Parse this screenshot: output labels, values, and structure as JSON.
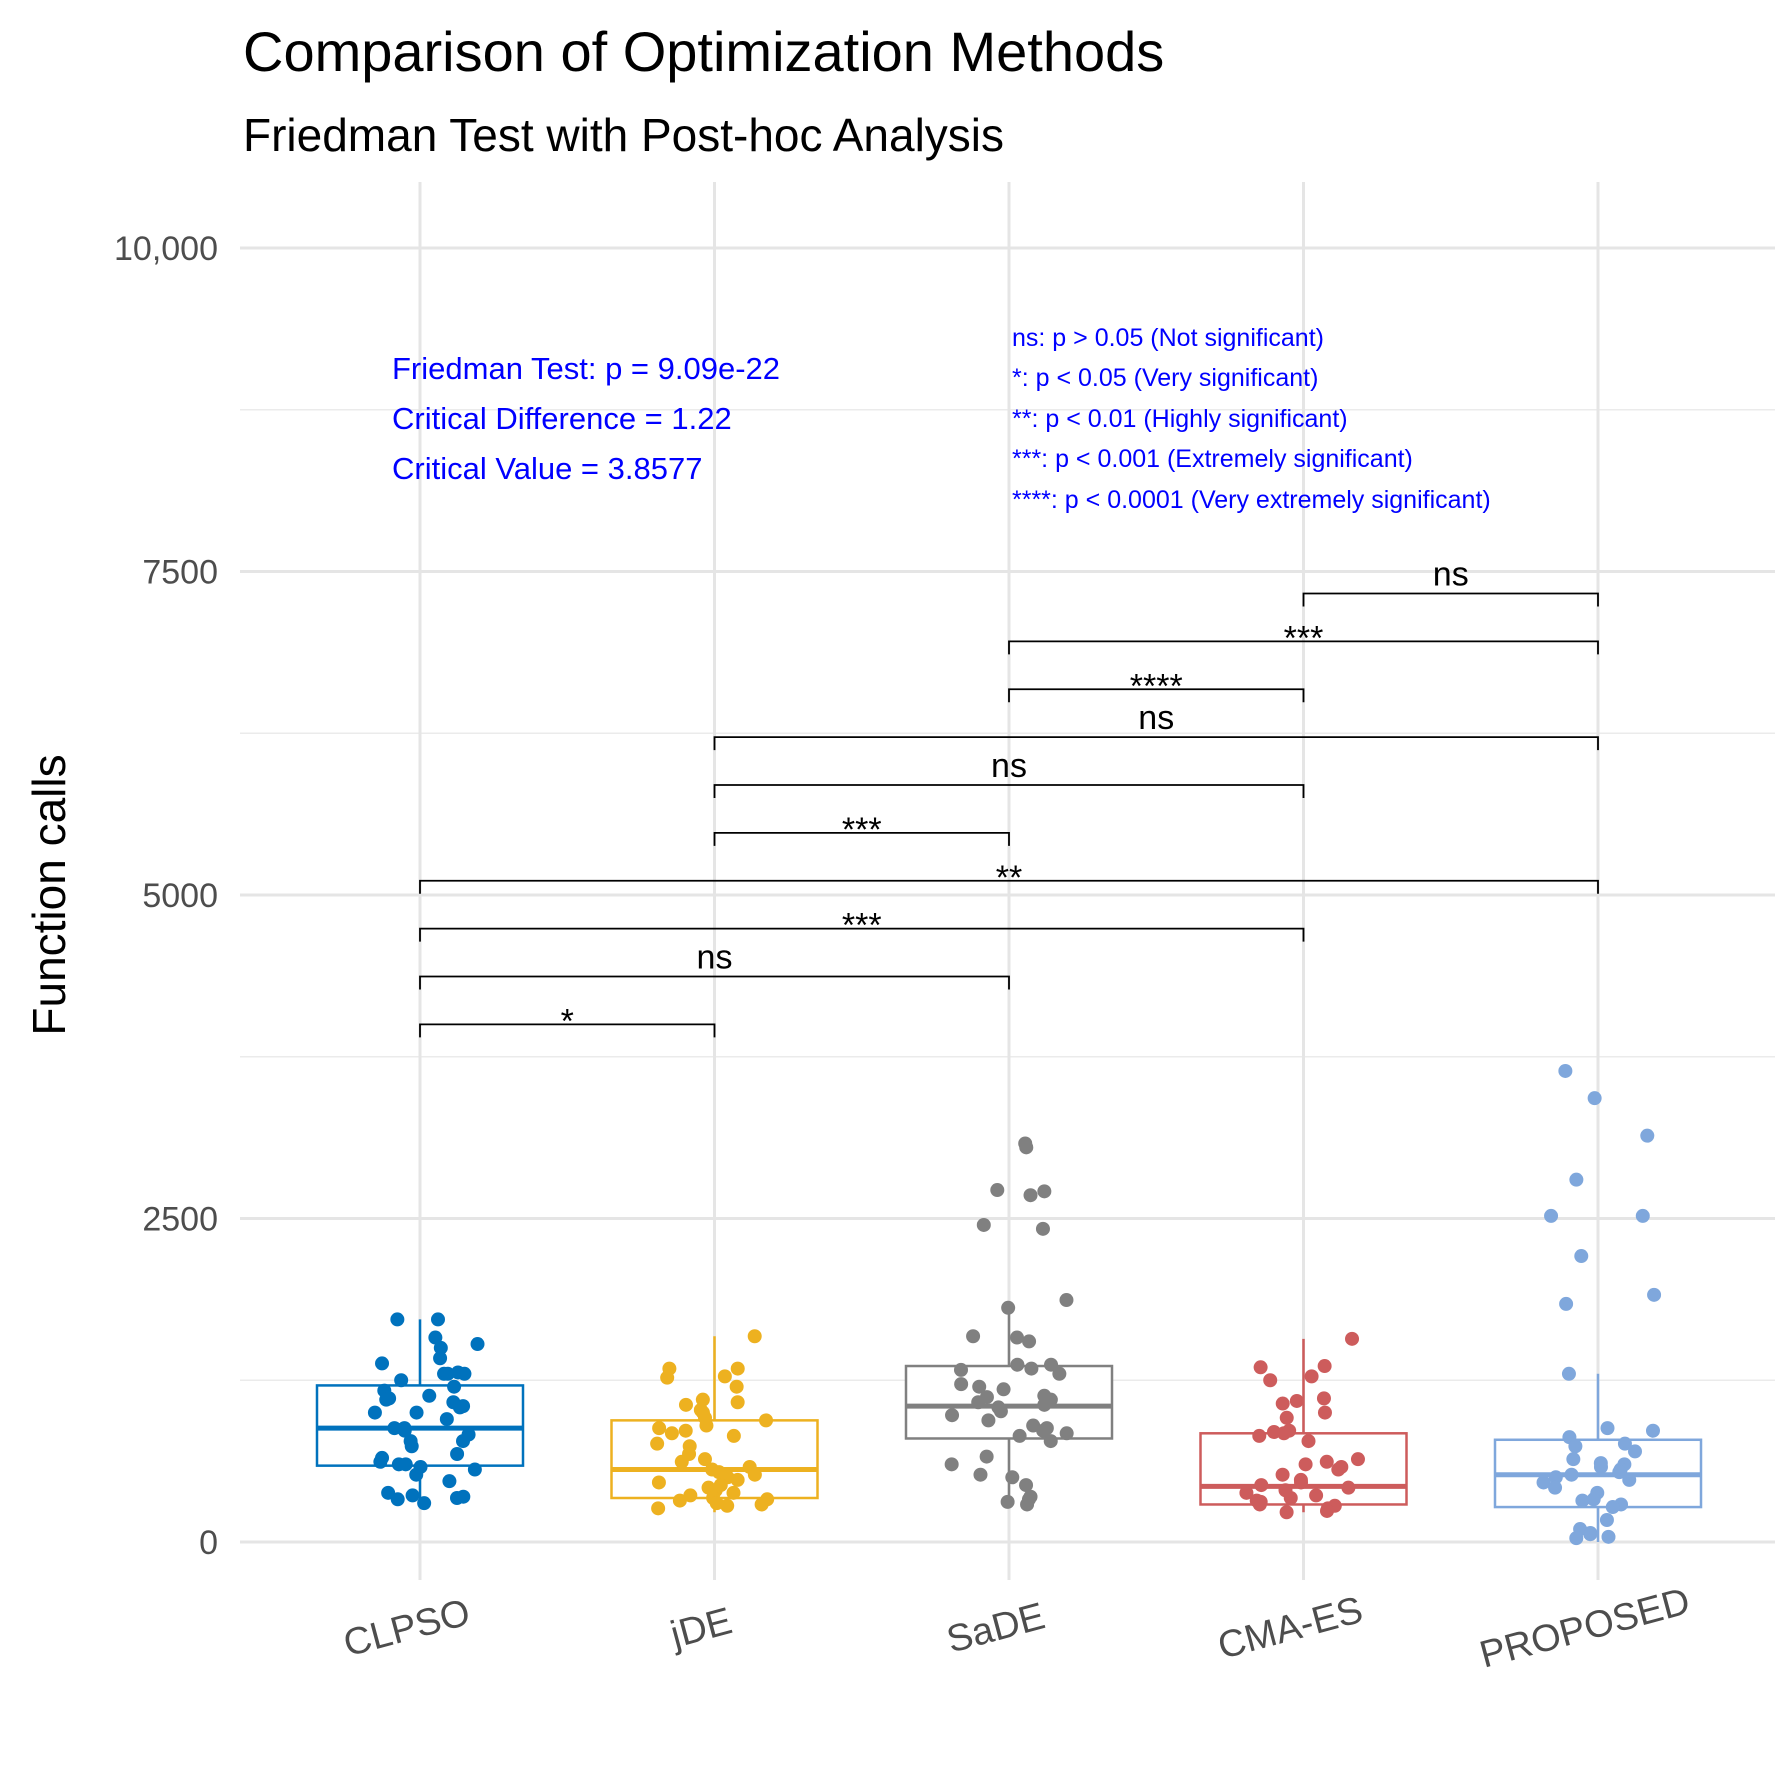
{
  "chart_data": {
    "type": "box",
    "title": "Comparison of Optimization Methods",
    "subtitle": "Friedman Test with Post-hoc Analysis",
    "xlabel": "",
    "ylabel": "Function calls",
    "ylim": [
      -200,
      10500
    ],
    "yticks": [
      0,
      2500,
      5000,
      7500,
      10000
    ],
    "ytick_labels": [
      "0",
      "2500",
      "5000",
      "7500",
      "10,000"
    ],
    "grid": true,
    "categories": [
      "CLPSO",
      "jDE",
      "SaDE",
      "CMA-ES",
      "PROPOSED"
    ],
    "colors": [
      "#0072BD",
      "#EDB120",
      "#808080",
      "#CD5C5C",
      "#7FA7DC"
    ],
    "boxes": [
      {
        "name": "CLPSO",
        "whisker_low": 300,
        "q1": 590,
        "median": 880,
        "q3": 1210,
        "whisker_high": 1720
      },
      {
        "name": "jDE",
        "whisker_low": 230,
        "q1": 340,
        "median": 560,
        "q3": 940,
        "whisker_high": 1590
      },
      {
        "name": "SaDE",
        "whisker_low": 290,
        "q1": 800,
        "median": 1050,
        "q3": 1360,
        "whisker_high": 1860
      },
      {
        "name": "CMA-ES",
        "whisker_low": 230,
        "q1": 290,
        "median": 430,
        "q3": 840,
        "whisker_high": 1570
      },
      {
        "name": "PROPOSED",
        "whisker_low": 0,
        "q1": 270,
        "median": 520,
        "q3": 790,
        "whisker_high": 1300
      }
    ],
    "points": [
      {
        "name": "CLPSO",
        "values": [
          1720,
          1720,
          1580,
          1530,
          1500,
          1420,
          1380,
          1300,
          1300,
          1310,
          1300,
          1250,
          1200,
          1170,
          1130,
          1110,
          1100,
          1080,
          1050,
          1040,
          1000,
          1000,
          950,
          880,
          880,
          860,
          830,
          780,
          780,
          740,
          680,
          650,
          620,
          600,
          600,
          580,
          560,
          520,
          470,
          380,
          360,
          350,
          340,
          330,
          300
        ]
      },
      {
        "name": "jDE",
        "values": [
          1590,
          1340,
          1340,
          1280,
          1270,
          1200,
          1100,
          1080,
          1060,
          1020,
          1000,
          960,
          940,
          900,
          880,
          860,
          840,
          820,
          760,
          740,
          680,
          640,
          620,
          580,
          560,
          540,
          520,
          500,
          480,
          460,
          440,
          420,
          400,
          380,
          360,
          340,
          330,
          320,
          300,
          290,
          280,
          260
        ]
      },
      {
        "name": "SaDE",
        "values": [
          3080,
          3050,
          2720,
          2710,
          2680,
          2450,
          2420,
          1870,
          1810,
          1590,
          1580,
          1550,
          1370,
          1370,
          1340,
          1330,
          1300,
          1220,
          1200,
          1180,
          1130,
          1120,
          1100,
          1080,
          1060,
          1040,
          1010,
          980,
          940,
          900,
          880,
          860,
          840,
          820,
          780,
          660,
          600,
          520,
          500,
          440,
          350,
          330,
          310,
          290
        ]
      },
      {
        "name": "CMA-ES",
        "values": [
          1570,
          1360,
          1350,
          1280,
          1250,
          1110,
          1090,
          1070,
          1000,
          960,
          860,
          850,
          840,
          820,
          780,
          640,
          620,
          600,
          580,
          560,
          520,
          480,
          460,
          440,
          420,
          400,
          380,
          360,
          340,
          320,
          310,
          300,
          290,
          280,
          260,
          240,
          230
        ]
      },
      {
        "name": "PROPOSED",
        "values": [
          3640,
          3430,
          3140,
          2800,
          2520,
          2520,
          2210,
          1910,
          1840,
          1300,
          880,
          860,
          810,
          760,
          740,
          700,
          640,
          610,
          600,
          580,
          560,
          540,
          520,
          500,
          480,
          460,
          420,
          380,
          330,
          320,
          290,
          270,
          170,
          100,
          70,
          60,
          40,
          30
        ]
      }
    ],
    "comparisons": [
      {
        "from": "CLPSO",
        "to": "jDE",
        "y": 4000,
        "label": "*"
      },
      {
        "from": "CLPSO",
        "to": "SaDE",
        "y": 4370,
        "label": "ns"
      },
      {
        "from": "CLPSO",
        "to": "CMA-ES",
        "y": 4740,
        "label": "***"
      },
      {
        "from": "CLPSO",
        "to": "PROPOSED",
        "y": 5110,
        "label": "**"
      },
      {
        "from": "jDE",
        "to": "SaDE",
        "y": 5480,
        "label": "***"
      },
      {
        "from": "jDE",
        "to": "CMA-ES",
        "y": 5850,
        "label": "ns"
      },
      {
        "from": "jDE",
        "to": "PROPOSED",
        "y": 6220,
        "label": "ns"
      },
      {
        "from": "SaDE",
        "to": "CMA-ES",
        "y": 6590,
        "label": "****"
      },
      {
        "from": "SaDE",
        "to": "PROPOSED",
        "y": 6960,
        "label": "***"
      },
      {
        "from": "CMA-ES",
        "to": "PROPOSED",
        "y": 7330,
        "label": "ns"
      }
    ],
    "annotations": {
      "friedman": "Friedman Test: p = 9.09e-22",
      "critical_difference": "Critical Difference = 1.22",
      "critical_value": "Critical Value = 3.8577"
    },
    "significance_legend": [
      "ns: p > 0.05 (Not significant)",
      "*: p < 0.05 (Very significant)",
      "**: p < 0.01 (Highly significant)",
      "***: p < 0.001  (Extremely significant)",
      "****: p < 0.0001  (Very extremely significant)"
    ]
  }
}
